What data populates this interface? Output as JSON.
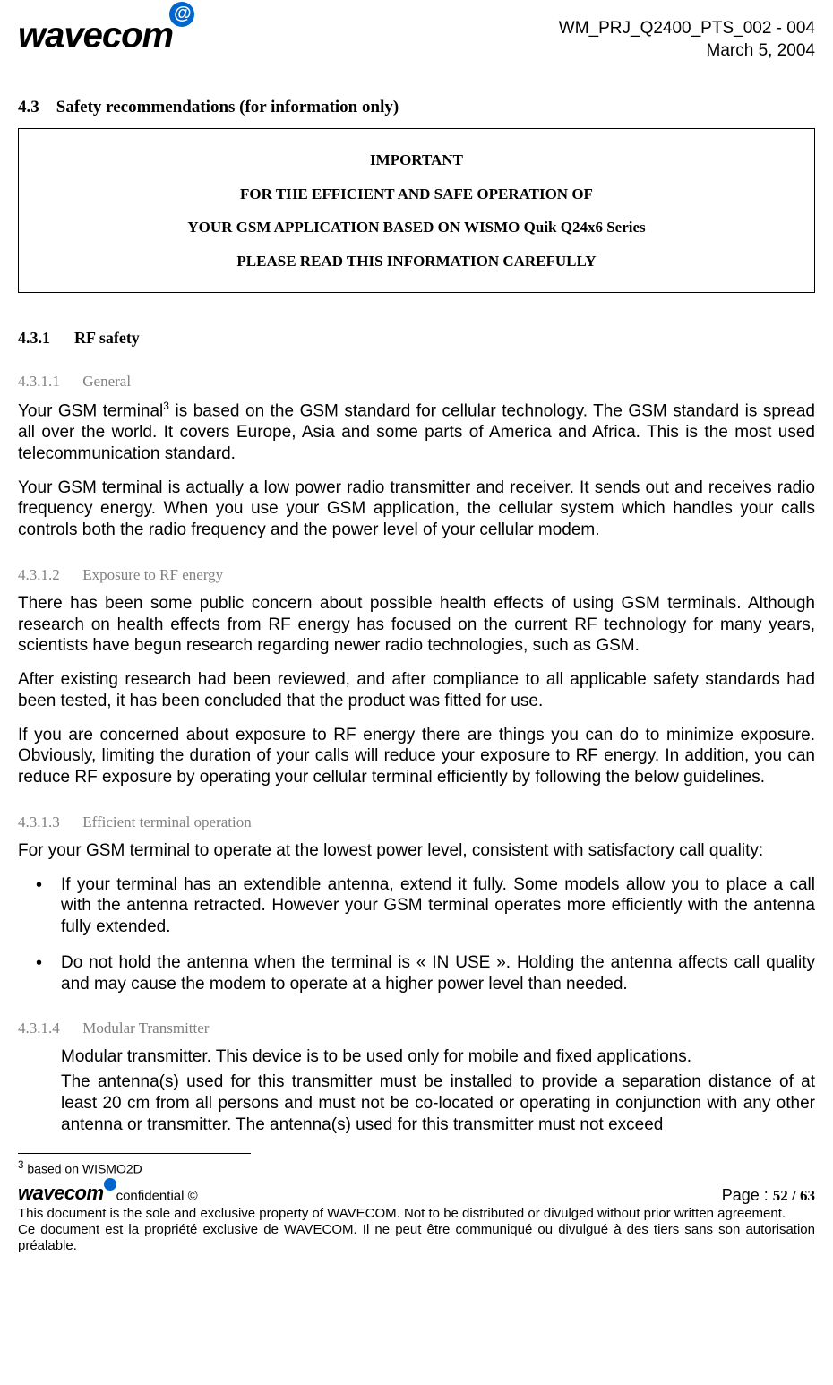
{
  "header": {
    "doc_id": "WM_PRJ_Q2400_PTS_002  - 004",
    "date": "March 5, 2004"
  },
  "section43": {
    "num": "4.3",
    "title": "Safety recommendations (for information only)"
  },
  "important": {
    "l1": "IMPORTANT",
    "l2": "FOR THE EFFICIENT AND SAFE OPERATION OF",
    "l3": "YOUR GSM APPLICATION BASED ON WISMO Quik Q24x6 Series",
    "l4": "PLEASE READ THIS INFORMATION CAREFULLY"
  },
  "s431": {
    "num": "4.3.1",
    "title": "RF safety"
  },
  "s4311": {
    "num": "4.3.1.1",
    "title": "General",
    "p1a": "Your GSM terminal",
    "p1b": " is based on the GSM standard for cellular technology. The GSM standard is spread all over the world. It covers Europe, Asia and some parts of America and Africa. This is the most used telecommunication standard.",
    "p2": "Your GSM terminal is actually a low power radio transmitter and receiver. It sends out and receives radio frequency energy. When you use your GSM application, the cellular system which handles your calls controls both the radio frequency and the power level of your cellular modem."
  },
  "s4312": {
    "num": "4.3.1.2",
    "title": "Exposure to RF energy",
    "p1": "There has been some public concern about possible health effects of using GSM terminals. Although research on health effects from RF energy has focused on the current RF technology for many years, scientists have begun research regarding newer radio technologies, such as GSM.",
    "p2": "After existing research had been reviewed, and after compliance to all applicable safety standards had been tested, it has been concluded that the product was fitted for use.",
    "p3": "If you are concerned about exposure to RF energy there are things you can do to minimize exposure. Obviously, limiting the duration of your calls will reduce your exposure to RF energy. In addition, you can reduce RF exposure by operating your cellular terminal efficiently by following the below guidelines."
  },
  "s4313": {
    "num": "4.3.1.3",
    "title": "Efficient terminal operation",
    "p1": "For your GSM terminal to operate at the lowest power level, consistent with satisfactory call quality:",
    "b1": "If your terminal has an extendible antenna, extend it fully. Some models allow you to place a call with the antenna retracted. However your GSM terminal operates more efficiently with the antenna fully extended.",
    "b2": "Do not hold the antenna when the terminal is « IN USE ». Holding the antenna affects call quality and may cause the modem to operate at a higher power level than needed."
  },
  "s4314": {
    "num": "4.3.1.4",
    "title": "Modular Transmitter",
    "p1": "Modular transmitter.  This device is to be used only for mobile and fixed applications.",
    "p2": "The antenna(s) used for this transmitter must be installed to provide a separation distance of at least 20 cm from all persons and must not be co-located or operating in conjunction with any other antenna or transmitter.  The antenna(s) used for this transmitter must not exceed"
  },
  "footnote": {
    "marker": "3",
    "text": " based on WISMO2D"
  },
  "footer": {
    "conf": "confidential ©",
    "page_label": "Page : ",
    "page_num": "52 / 63",
    "en": "This document is the sole and exclusive property of WAVECOM. Not to be distributed or divulged without prior written agreement.",
    "fr": "Ce document est la propriété exclusive de WAVECOM. Il ne peut être communiqué ou divulgué à des tiers sans son autorisation préalable."
  }
}
